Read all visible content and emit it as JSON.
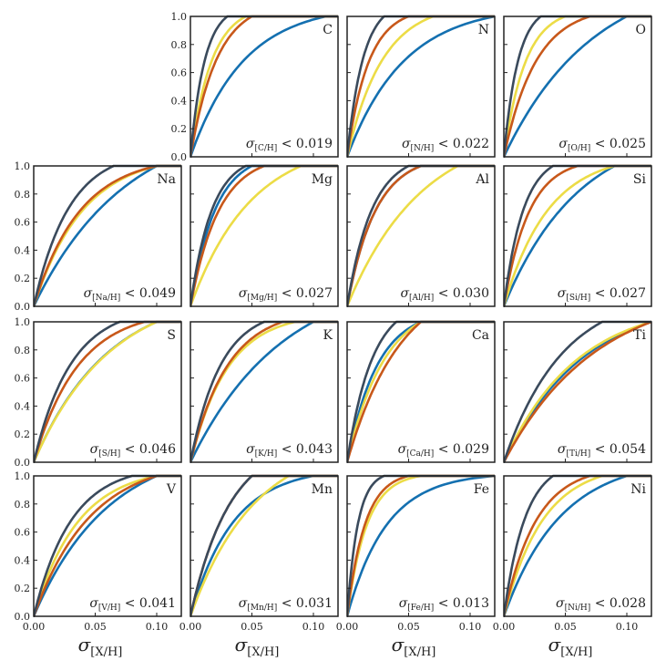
{
  "chart_data": {
    "type": "line",
    "xlabel": "σ",
    "xlabel_sub": "[X/H]",
    "xlim": [
      0,
      0.12
    ],
    "ylim": [
      0,
      1
    ],
    "xticks": [
      "0.00",
      "0.05",
      "0.10"
    ],
    "yticks": [
      "0.0",
      "0.2",
      "0.4",
      "0.6",
      "0.8",
      "1.0"
    ],
    "series_colors": [
      "#3a4a5c",
      "#c8581a",
      "#ecdc46",
      "#1470b0"
    ],
    "panels": [
      {
        "element": "C",
        "sub": "[C/H]",
        "threshold": "< 0.019",
        "row": 0,
        "col": 1,
        "p50": [
          0.008,
          0.015,
          0.012,
          0.03
        ],
        "pmax": [
          0.03,
          0.05,
          0.045,
          0.11
        ]
      },
      {
        "element": "N",
        "sub": "[N/H]",
        "threshold": "< 0.022",
        "row": 0,
        "col": 2,
        "p50": [
          0.009,
          0.012,
          0.02,
          0.032
        ],
        "pmax": [
          0.03,
          0.05,
          0.07,
          0.12
        ]
      },
      {
        "element": "O",
        "sub": "[O/H]",
        "threshold": "< 0.025",
        "row": 0,
        "col": 3,
        "p50": [
          0.008,
          0.018,
          0.012,
          0.05
        ],
        "pmax": [
          0.03,
          0.07,
          0.05,
          0.1
        ]
      },
      {
        "element": "Na",
        "sub": "[Na/H]",
        "threshold": "< 0.049",
        "row": 1,
        "col": 0,
        "p50": [
          0.02,
          0.026,
          0.028,
          0.052
        ],
        "pmax": [
          0.065,
          0.1,
          0.1,
          0.1
        ]
      },
      {
        "element": "Mg",
        "sub": "[Mg/H]",
        "threshold": "< 0.027",
        "row": 1,
        "col": 1,
        "p50": [
          0.012,
          0.016,
          0.034,
          0.014
        ],
        "pmax": [
          0.045,
          0.06,
          0.09,
          0.05
        ]
      },
      {
        "element": "Al",
        "sub": "[Al/H]",
        "threshold": "< 0.030",
        "row": 1,
        "col": 2,
        "p50": [
          0.014,
          0.016,
          0.042,
          0.016
        ],
        "pmax": [
          0.05,
          0.06,
          0.09,
          0.06
        ]
      },
      {
        "element": "Si",
        "sub": "[Si/H]",
        "threshold": "< 0.027",
        "row": 1,
        "col": 3,
        "p50": [
          0.011,
          0.014,
          0.025,
          0.042
        ],
        "pmax": [
          0.04,
          0.06,
          0.09,
          0.09
        ]
      },
      {
        "element": "S",
        "sub": "[S/H]",
        "threshold": "< 0.046",
        "row": 2,
        "col": 0,
        "p50": [
          0.021,
          0.025,
          0.043,
          0.042
        ],
        "pmax": [
          0.07,
          0.09,
          0.1,
          0.1
        ]
      },
      {
        "element": "K",
        "sub": "[K/H]",
        "threshold": "< 0.043",
        "row": 2,
        "col": 1,
        "p50": [
          0.017,
          0.021,
          0.021,
          0.052
        ],
        "pmax": [
          0.06,
          0.075,
          0.085,
          0.1
        ]
      },
      {
        "element": "Ca",
        "sub": "[Ca/H]",
        "threshold": "< 0.029",
        "row": 2,
        "col": 2,
        "p50": [
          0.014,
          0.03,
          0.021,
          0.017
        ],
        "pmax": [
          0.04,
          0.06,
          0.06,
          0.06
        ]
      },
      {
        "element": "Ti",
        "sub": "[Ti/H]",
        "threshold": "< 0.054",
        "row": 2,
        "col": 3,
        "p50": [
          0.033,
          0.052,
          0.041,
          0.045
        ],
        "pmax": [
          0.08,
          0.12,
          0.12,
          0.12
        ]
      },
      {
        "element": "V",
        "sub": "[V/H]",
        "threshold": "< 0.041",
        "row": 3,
        "col": 0,
        "p50": [
          0.021,
          0.032,
          0.025,
          0.042
        ],
        "pmax": [
          0.08,
          0.1,
          0.1,
          0.1
        ]
      },
      {
        "element": "Mn",
        "sub": "[Mn/H]",
        "threshold": "< 0.031",
        "row": 3,
        "col": 1,
        "p50": [
          0.022,
          0.022,
          0.036,
          0.024
        ],
        "pmax": [
          0.05,
          0.05,
          0.08,
          0.1
        ]
      },
      {
        "element": "Fe",
        "sub": "[Fe/H]",
        "threshold": "< 0.013",
        "row": 3,
        "col": 2,
        "p50": [
          0.006,
          0.01,
          0.011,
          0.022
        ],
        "pmax": [
          0.03,
          0.05,
          0.06,
          0.12
        ]
      },
      {
        "element": "Ni",
        "sub": "[Ni/H]",
        "threshold": "< 0.028",
        "row": 3,
        "col": 3,
        "p50": [
          0.012,
          0.018,
          0.022,
          0.032
        ],
        "pmax": [
          0.04,
          0.07,
          0.08,
          0.1
        ]
      }
    ]
  }
}
